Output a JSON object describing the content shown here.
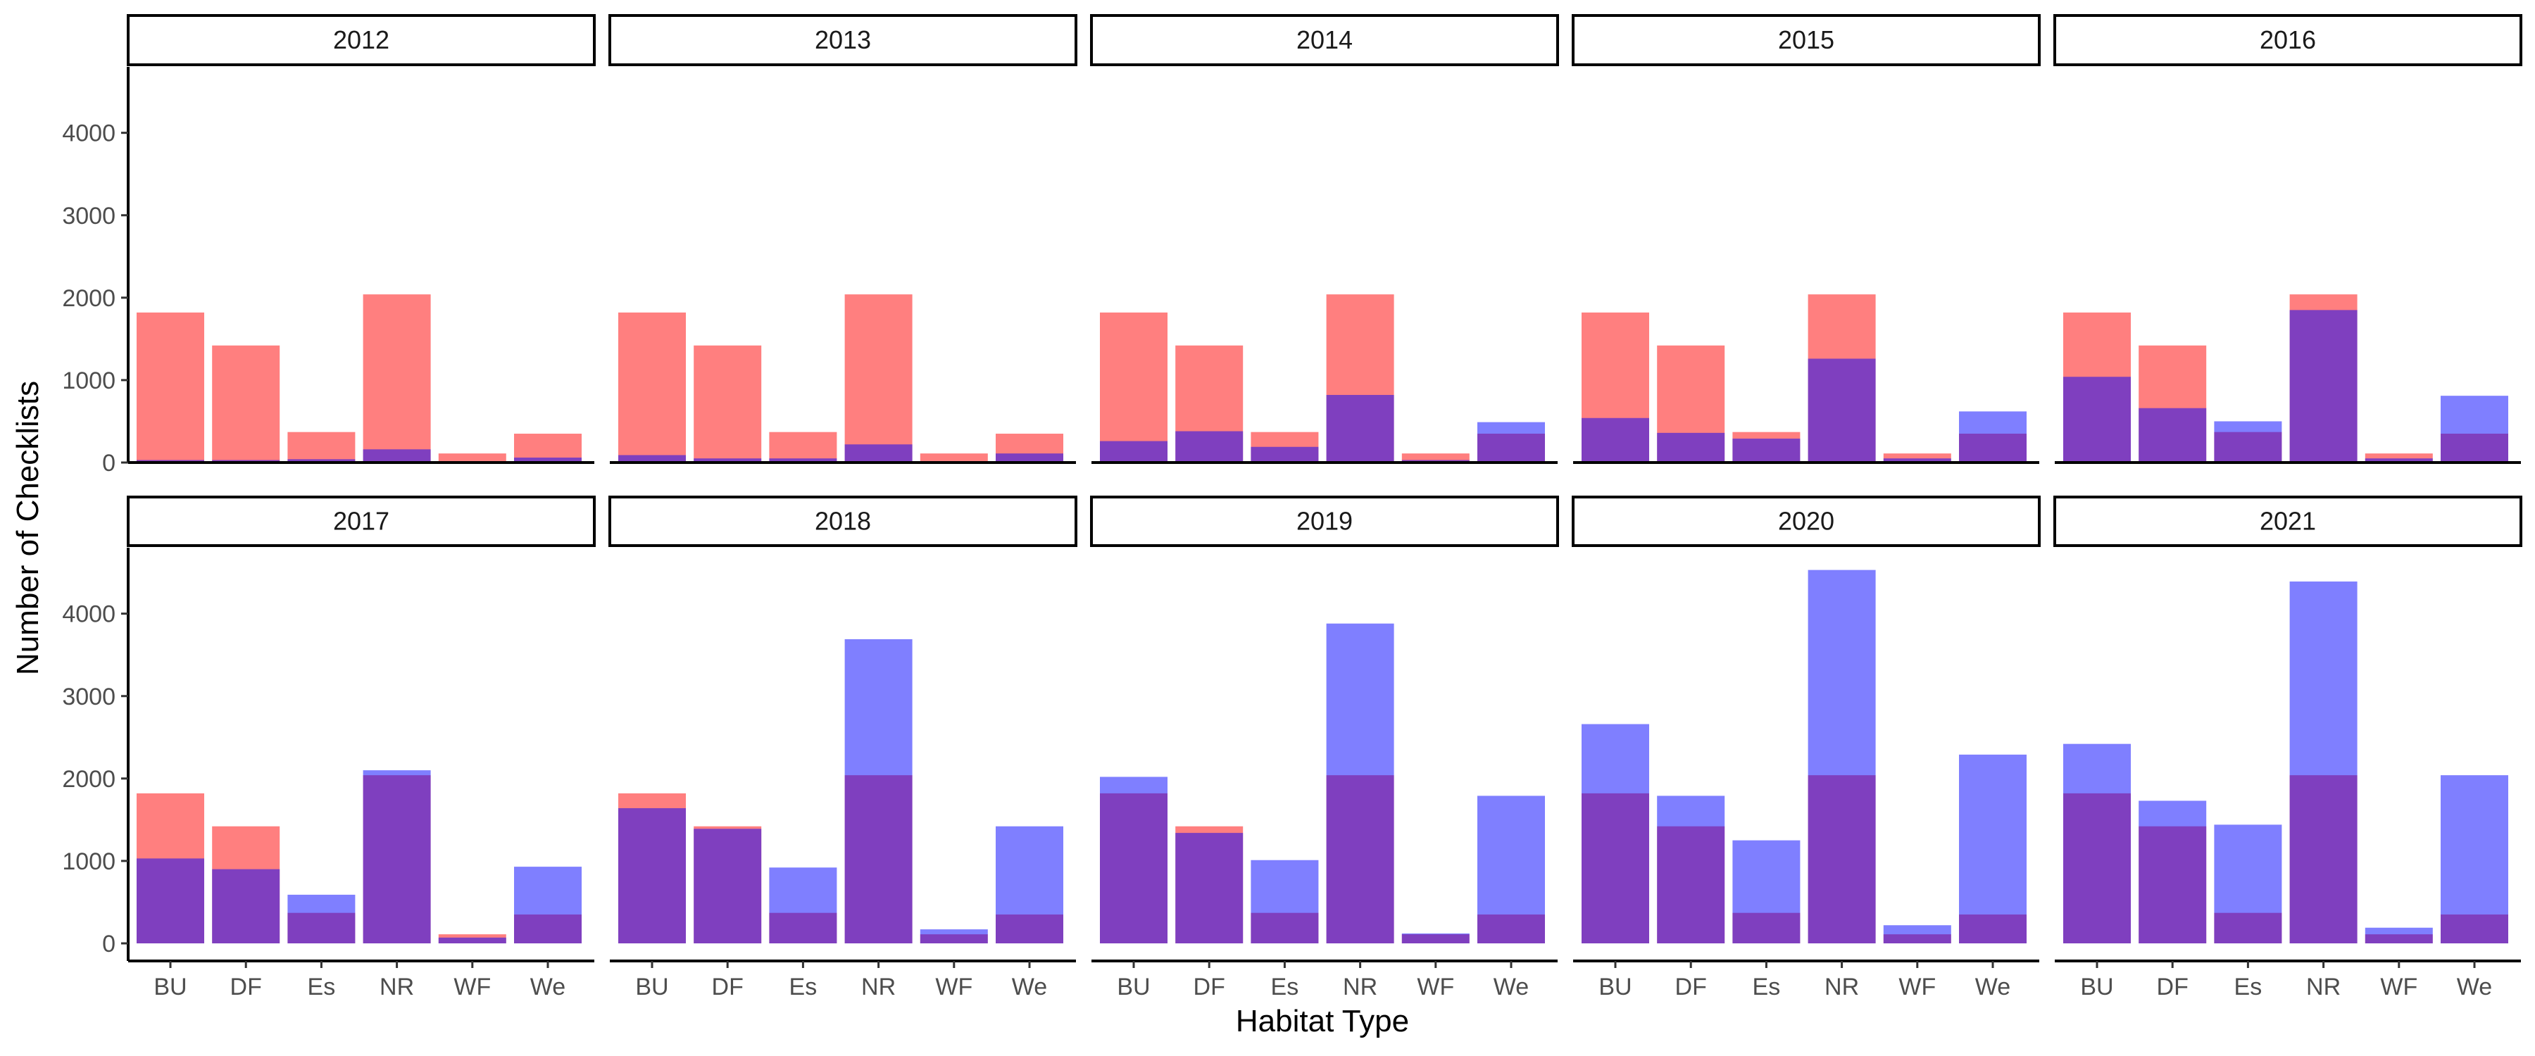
{
  "chart_data": {
    "type": "bar",
    "layout": "faceted 2x5 grid, overlaid bars per habitat type",
    "xlabel": "Habitat Type",
    "ylabel": "Number of Checklists",
    "ylim": [
      0,
      4800
    ],
    "yticks": [
      0,
      1000,
      2000,
      3000,
      4000
    ],
    "categories": [
      "BU",
      "DF",
      "Es",
      "NR",
      "WF",
      "We"
    ],
    "grid": false,
    "legend": "none",
    "colors": {
      "red": "#ff0000",
      "blue": "#0000ff",
      "red_opacity": 0.5,
      "blue_opacity": 0.5,
      "overlap_appearance": "#c13b77"
    },
    "facets": [
      {
        "label": "2012",
        "red": [
          1820,
          1420,
          370,
          2040,
          110,
          350
        ],
        "blue": [
          30,
          30,
          40,
          160,
          0,
          60
        ]
      },
      {
        "label": "2013",
        "red": [
          1820,
          1420,
          370,
          2040,
          110,
          350
        ],
        "blue": [
          90,
          50,
          50,
          220,
          0,
          110
        ]
      },
      {
        "label": "2014",
        "red": [
          1820,
          1420,
          370,
          2040,
          110,
          350
        ],
        "blue": [
          260,
          380,
          190,
          820,
          30,
          490
        ]
      },
      {
        "label": "2015",
        "red": [
          1820,
          1420,
          370,
          2040,
          110,
          350
        ],
        "blue": [
          540,
          360,
          290,
          1260,
          50,
          620
        ]
      },
      {
        "label": "2016",
        "red": [
          1820,
          1420,
          370,
          2040,
          110,
          350
        ],
        "blue": [
          1040,
          660,
          500,
          1850,
          50,
          810
        ]
      },
      {
        "label": "2017",
        "red": [
          1820,
          1420,
          370,
          2040,
          110,
          350
        ],
        "blue": [
          1030,
          900,
          590,
          2100,
          70,
          930
        ]
      },
      {
        "label": "2018",
        "red": [
          1820,
          1420,
          370,
          2040,
          110,
          350
        ],
        "blue": [
          1640,
          1390,
          920,
          3690,
          170,
          1420
        ]
      },
      {
        "label": "2019",
        "red": [
          1820,
          1420,
          370,
          2040,
          110,
          350
        ],
        "blue": [
          2020,
          1340,
          1010,
          3880,
          120,
          1790
        ]
      },
      {
        "label": "2020",
        "red": [
          1820,
          1420,
          370,
          2040,
          110,
          350
        ],
        "blue": [
          2660,
          1790,
          1250,
          4530,
          220,
          2290
        ]
      },
      {
        "label": "2021",
        "red": [
          1820,
          1420,
          370,
          2040,
          110,
          350
        ],
        "blue": [
          2420,
          1730,
          1440,
          4390,
          190,
          2040
        ]
      }
    ]
  }
}
